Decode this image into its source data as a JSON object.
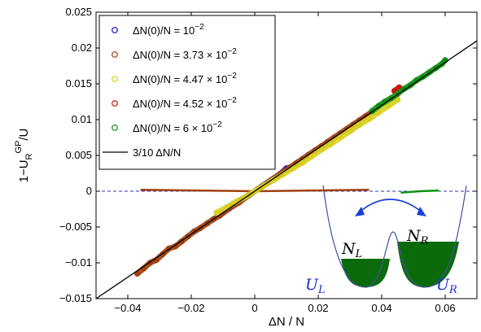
{
  "chart_data": {
    "type": "scatter",
    "xlabel": "ΔN / N",
    "ylabel": "1−U_R^GP/U",
    "xlim": [
      -0.05,
      0.07
    ],
    "ylim": [
      -0.015,
      0.025
    ],
    "x_ticks": [
      "−0.04",
      "−0.02",
      "0",
      "0.02",
      "0.04",
      "0.06"
    ],
    "x_tick_values": [
      -0.04,
      -0.02,
      0,
      0.02,
      0.04,
      0.06
    ],
    "y_ticks": [
      "−0.015",
      "−0.01",
      "−0.005",
      "0",
      "0.005",
      "0.01",
      "0.015",
      "0.02",
      "0.025"
    ],
    "y_tick_values": [
      -0.015,
      -0.01,
      -0.005,
      0,
      0.005,
      0.01,
      0.015,
      0.02,
      0.025
    ],
    "grid": false,
    "legend_position": "top-left",
    "series": [
      {
        "name": "ΔN(0)/N = 10^−2",
        "color": "#1010d8",
        "marker": "circle",
        "x": [
          -0.01,
          -0.008,
          -0.006,
          -0.004,
          -0.002,
          0.0,
          0.002,
          0.004,
          0.006,
          0.008,
          0.01
        ],
        "y": [
          -0.003,
          -0.0024,
          -0.0018,
          -0.0012,
          -0.0006,
          0.0,
          0.0006,
          0.0012,
          0.0018,
          0.0024,
          0.0032
        ]
      },
      {
        "name": "ΔN(0)/N = 3.73 × 10^−2",
        "color": "#a04010",
        "marker": "circle",
        "x": [
          -0.037,
          -0.035,
          -0.033,
          -0.031,
          -0.029,
          -0.027,
          -0.025,
          -0.023,
          -0.021,
          -0.019,
          -0.017,
          -0.015,
          -0.013,
          -0.011,
          -0.009,
          -0.007,
          -0.005,
          -0.003,
          -0.001,
          0.001,
          0.003,
          0.005,
          0.007,
          0.009,
          0.011,
          0.013,
          0.015,
          0.017,
          0.019,
          0.021,
          0.023,
          0.025,
          0.027,
          0.029,
          0.031,
          0.033,
          0.035,
          0.037
        ],
        "y": [
          -0.0115,
          -0.0108,
          -0.01,
          -0.0096,
          -0.0088,
          -0.008,
          -0.0077,
          -0.007,
          -0.0063,
          -0.0056,
          -0.0051,
          -0.0045,
          -0.0039,
          -0.0034,
          -0.0027,
          -0.0021,
          -0.0016,
          -0.0009,
          -0.0003,
          0.0003,
          0.0009,
          0.0015,
          0.0021,
          0.0027,
          0.0033,
          0.0039,
          0.0045,
          0.0051,
          0.0057,
          0.0063,
          0.0069,
          0.0075,
          0.0081,
          0.0087,
          0.0093,
          0.0099,
          0.0105,
          0.0111
        ]
      },
      {
        "name": "ΔN(0)/N = 4.47 × 10^−2",
        "color": "#d8d020",
        "marker": "circle",
        "x": [
          -0.012,
          -0.009,
          -0.006,
          -0.003,
          0.0,
          0.003,
          0.006,
          0.009,
          0.012,
          0.015,
          0.018,
          0.021,
          0.024,
          0.027,
          0.03,
          0.033,
          0.036,
          0.039,
          0.042,
          0.045
        ],
        "y": [
          -0.003,
          -0.0023,
          -0.0015,
          -0.0008,
          0.0,
          0.0008,
          0.0016,
          0.0024,
          0.0032,
          0.004,
          0.0049,
          0.0058,
          0.0066,
          0.0075,
          0.0084,
          0.0093,
          0.0101,
          0.011,
          0.0119,
          0.0128
        ]
      },
      {
        "name": "ΔN(0)/N = 4.52 × 10^−2",
        "color": "#d01010",
        "marker": "circle",
        "x": [
          0.044,
          0.0455
        ],
        "y": [
          0.014,
          0.0145
        ]
      },
      {
        "name": "ΔN(0)/N = 6 × 10^−2",
        "color": "#109010",
        "marker": "circle",
        "x": [
          0.037,
          0.039,
          0.041,
          0.043,
          0.045,
          0.047,
          0.049,
          0.051,
          0.053,
          0.055,
          0.057,
          0.059,
          0.06
        ],
        "y": [
          0.0112,
          0.0119,
          0.0125,
          0.013,
          0.0136,
          0.0143,
          0.0148,
          0.0155,
          0.016,
          0.0166,
          0.0172,
          0.0178,
          0.0183
        ]
      }
    ],
    "near_zero_branches": [
      {
        "color": "#a04010",
        "x": [
          -0.036,
          -0.018,
          0.0,
          0.018,
          0.036
        ],
        "y": [
          0.0002,
          0.0001,
          0.0,
          0.0001,
          0.0002
        ]
      },
      {
        "color": "#109010",
        "x": [
          0.046,
          0.052,
          0.058
        ],
        "y": [
          -0.0002,
          0.0,
          0.0001
        ]
      }
    ],
    "reference_line": {
      "name": "3/10 ΔN/N",
      "color": "#000000",
      "slope": 0.3
    },
    "zero_line": {
      "color": "#3030c0",
      "style": "dashed",
      "y": 0
    },
    "inset": {
      "labels": {
        "N_L": "N",
        "N_L_sub": "L",
        "N_R": "N",
        "N_R_sub": "R",
        "U_L": "U",
        "U_L_sub": "L",
        "U_R": "U",
        "U_R_sub": "R"
      },
      "well_color": "#4050a0",
      "fill_color": "#0b6b0b",
      "arrow_color": "#1a3fd8",
      "label_color_blue": "#1a2ad8"
    }
  }
}
